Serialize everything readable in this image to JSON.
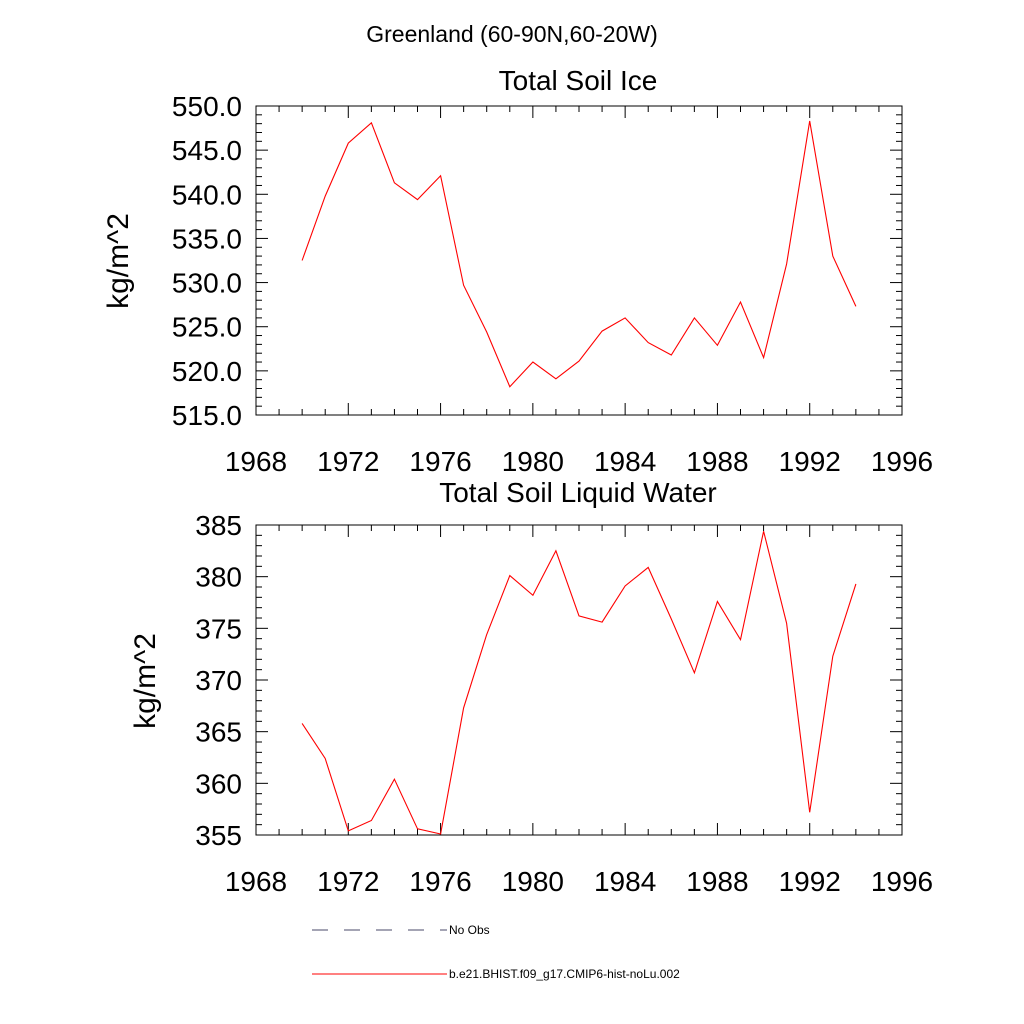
{
  "suptitle": "Greenland (60-90N,60-20W)",
  "legend": {
    "obs_label": "No Obs",
    "model_label": "b.e21.BHIST.f09_g17.CMIP6-hist-noLu.002",
    "obs_color": "#4a4a6a",
    "model_color": "#ff0000"
  },
  "chart_data": [
    {
      "type": "line",
      "title": "Total Soil Ice",
      "ylabel": "kg/m^2",
      "xlabel": "",
      "xlim": [
        1968,
        1996
      ],
      "ylim": [
        515,
        550
      ],
      "xticks": [
        "1968",
        "1972",
        "1976",
        "1980",
        "1984",
        "1988",
        "1992",
        "1996"
      ],
      "yticks": [
        "515.0",
        "520.0",
        "525.0",
        "530.0",
        "535.0",
        "540.0",
        "545.0",
        "550.0"
      ],
      "series": [
        {
          "name": "b.e21.BHIST.f09_g17.CMIP6-hist-noLu.002",
          "color": "#ff0000",
          "x": [
            1970,
            1971,
            1972,
            1973,
            1974,
            1975,
            1976,
            1977,
            1978,
            1979,
            1980,
            1981,
            1982,
            1983,
            1984,
            1985,
            1986,
            1987,
            1988,
            1989,
            1990,
            1991,
            1992,
            1993,
            1994
          ],
          "y": [
            532.5,
            539.8,
            545.8,
            548.1,
            541.3,
            539.4,
            542.1,
            529.7,
            524.4,
            518.2,
            521.0,
            519.1,
            521.1,
            524.5,
            526.0,
            523.2,
            521.8,
            526.0,
            522.9,
            527.8,
            521.5,
            532.1,
            548.3,
            533.0,
            527.3
          ]
        }
      ]
    },
    {
      "type": "line",
      "title": "Total Soil Liquid Water",
      "ylabel": "kg/m^2",
      "xlabel": "",
      "xlim": [
        1968,
        1996
      ],
      "ylim": [
        355,
        385
      ],
      "xticks": [
        "1968",
        "1972",
        "1976",
        "1980",
        "1984",
        "1988",
        "1992",
        "1996"
      ],
      "yticks": [
        "355",
        "360",
        "365",
        "370",
        "375",
        "380",
        "385"
      ],
      "series": [
        {
          "name": "b.e21.BHIST.f09_g17.CMIP6-hist-noLu.002",
          "color": "#ff0000",
          "x": [
            1970,
            1971,
            1972,
            1973,
            1974,
            1975,
            1976,
            1977,
            1978,
            1979,
            1980,
            1981,
            1982,
            1983,
            1984,
            1985,
            1986,
            1987,
            1988,
            1989,
            1990,
            1991,
            1992,
            1993,
            1994
          ],
          "y": [
            365.8,
            362.4,
            355.4,
            356.4,
            360.4,
            355.6,
            355.1,
            367.3,
            374.4,
            380.1,
            378.2,
            382.5,
            376.2,
            375.6,
            379.1,
            380.9,
            375.9,
            370.7,
            377.6,
            373.9,
            384.4,
            375.5,
            357.2,
            372.3,
            379.3
          ]
        }
      ]
    }
  ]
}
